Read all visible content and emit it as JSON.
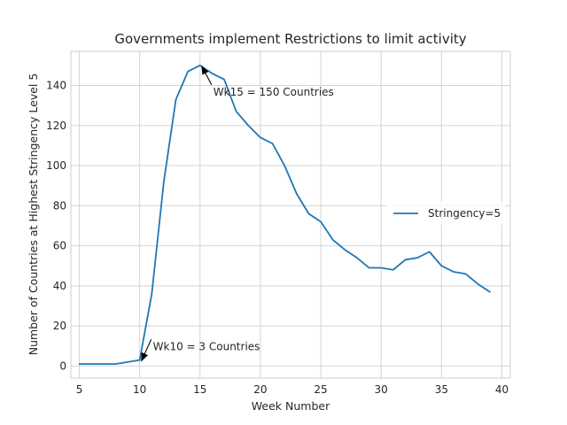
{
  "chart_data": {
    "type": "line",
    "title": "Governments implement Restrictions to limit activity",
    "xlabel": "Week Number",
    "ylabel": "Number of Countries at Highest Stringency Level 5",
    "xlim": [
      4.3,
      40.7
    ],
    "ylim": [
      -6,
      157
    ],
    "xticks": [
      5,
      10,
      15,
      20,
      25,
      30,
      35,
      40
    ],
    "yticks": [
      0,
      20,
      40,
      60,
      80,
      100,
      120,
      140
    ],
    "grid": true,
    "legend_position": "center-right",
    "series": [
      {
        "name": "Stringency=5",
        "color": "#1f77b4",
        "x": [
          5,
          6,
          7,
          8,
          9,
          10,
          11,
          12,
          13,
          14,
          15,
          16,
          17,
          18,
          19,
          20,
          21,
          22,
          23,
          24,
          25,
          26,
          27,
          28,
          29,
          30,
          31,
          32,
          33,
          34,
          35,
          36,
          37,
          38,
          39
        ],
        "y": [
          1,
          1,
          1,
          1,
          2,
          3,
          36,
          92,
          133,
          147,
          150,
          146,
          143,
          127,
          120,
          114,
          111,
          100,
          86,
          76,
          72,
          63,
          58,
          54,
          49,
          49,
          48,
          53,
          54,
          57,
          50,
          47,
          46,
          41,
          37
        ]
      }
    ],
    "annotations": [
      {
        "text": "Wk15 = 150 Countries",
        "x": 15,
        "y": 150,
        "text_x": 16.1,
        "text_y": 135
      },
      {
        "text": "Wk10 = 3 Countries",
        "x": 10,
        "y": 3,
        "text_x": 11.1,
        "text_y": 8
      }
    ]
  }
}
